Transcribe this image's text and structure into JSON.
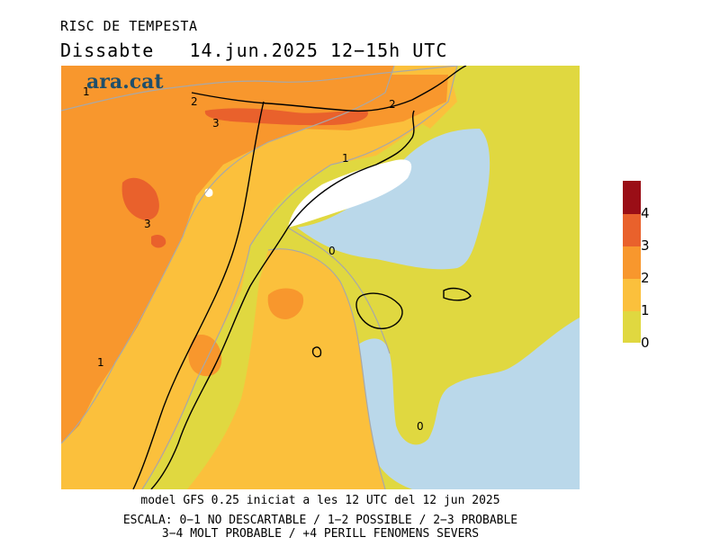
{
  "title": "RISC DE TEMPESTA",
  "subtitle": {
    "day": "Dissabte",
    "date": "14.jun.2025",
    "hours": "12−15h UTC"
  },
  "logo": "ara.cat",
  "contour_labels": [
    "1",
    "2",
    "3",
    "2",
    "1",
    "3",
    "0",
    "1",
    "0"
  ],
  "footer": {
    "model": "model GFS 0.25 iniciat a les 12 UTC del 12 jun 2025",
    "scale_line1": "ESCALA: 0−1 NO DESCARTABLE / 1−2 POSSIBLE / 2−3 PROBABLE",
    "scale_line2": "3−4 MOLT PROBABLE / +4 PERILL FENOMENS SEVERS"
  },
  "legend": {
    "levels": [
      {
        "label": "0",
        "color": "#e0d840"
      },
      {
        "label": "1",
        "color": "#fbc03c"
      },
      {
        "label": "2",
        "color": "#f8972d"
      },
      {
        "label": "3",
        "color": "#e9612c"
      },
      {
        "label": "4",
        "color": "#9a0e16"
      }
    ]
  },
  "colors": {
    "sea": "#bad8ea",
    "level0": "#e0d840",
    "level1": "#fbc03c",
    "level2": "#f8972d",
    "level3": "#e9612c",
    "level4": "#9a0e16",
    "no_data": "#ffffff"
  }
}
